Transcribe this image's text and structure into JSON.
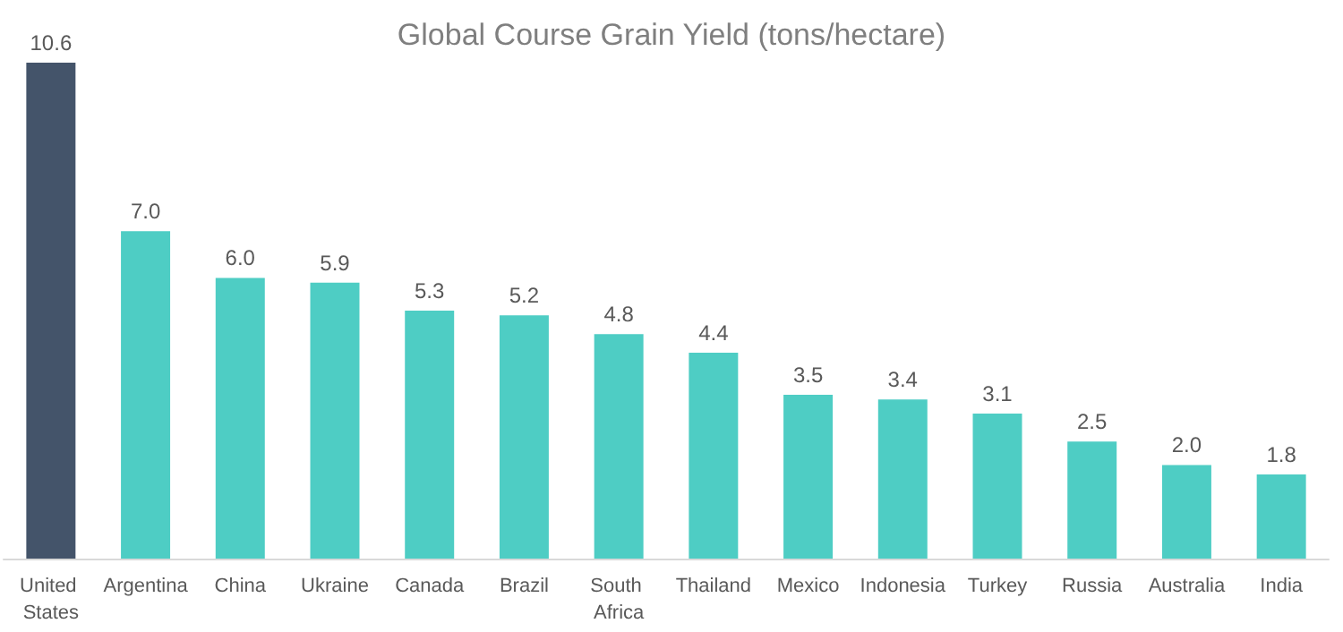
{
  "chart_data": {
    "type": "bar",
    "title": "Global Course Grain Yield (tons/hectare)",
    "categories": [
      "United States",
      "Argentina",
      "China",
      "Ukraine",
      "Canada",
      "Brazil",
      "South Africa",
      "Thailand",
      "Mexico",
      "Indonesia",
      "Turkey",
      "Russia",
      "Australia",
      "India"
    ],
    "values": [
      10.6,
      7.0,
      6.0,
      5.9,
      5.3,
      5.2,
      4.8,
      4.4,
      3.5,
      3.4,
      3.1,
      2.5,
      2.0,
      1.8
    ],
    "colors": [
      "#44546a",
      "#4ecdc4",
      "#4ecdc4",
      "#4ecdc4",
      "#4ecdc4",
      "#4ecdc4",
      "#4ecdc4",
      "#4ecdc4",
      "#4ecdc4",
      "#4ecdc4",
      "#4ecdc4",
      "#4ecdc4",
      "#4ecdc4",
      "#4ecdc4"
    ],
    "value_labels": [
      "10.6",
      "7.0",
      "6.0",
      "5.9",
      "5.3",
      "5.2",
      "4.8",
      "4.4",
      "3.5",
      "3.4",
      "3.1",
      "2.5",
      "2.0",
      "1.8"
    ]
  }
}
